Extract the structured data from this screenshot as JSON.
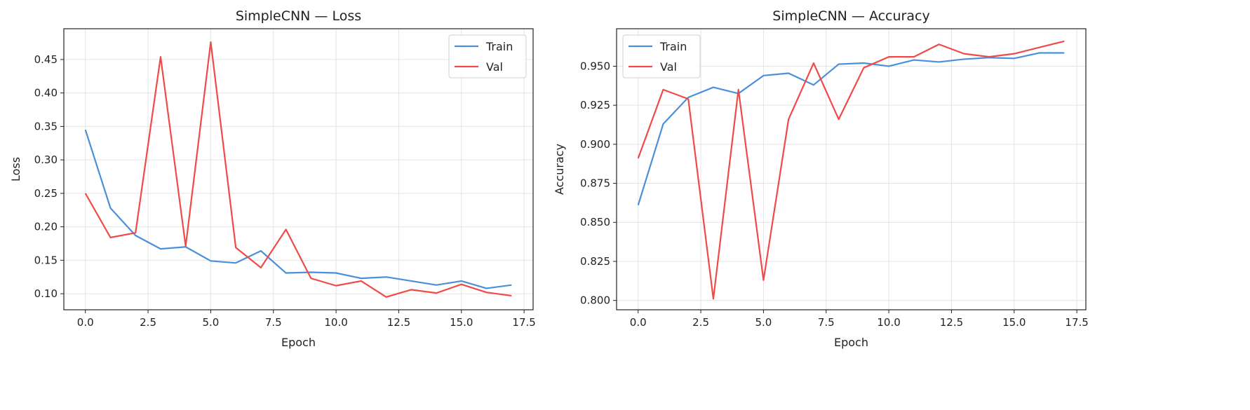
{
  "chart_data": [
    {
      "type": "line",
      "title": "SimpleCNN — Loss",
      "xlabel": "Epoch",
      "ylabel": "Loss",
      "xlim": [
        -0.86,
        17.86
      ],
      "ylim": [
        0.076,
        0.496
      ],
      "xticks": [
        0,
        2.5,
        5,
        7.5,
        10,
        12.5,
        15,
        17.5
      ],
      "xtick_labels": [
        "0.0",
        "2.5",
        "5.0",
        "7.5",
        "10.0",
        "12.5",
        "15.0",
        "17.5"
      ],
      "yticks": [
        0.1,
        0.15,
        0.2,
        0.25,
        0.3,
        0.35,
        0.4,
        0.45
      ],
      "ytick_labels": [
        "0.10",
        "0.15",
        "0.20",
        "0.25",
        "0.30",
        "0.35",
        "0.40",
        "0.45"
      ],
      "grid": true,
      "legend": "upper right",
      "x": [
        0,
        1,
        2,
        3,
        4,
        5,
        6,
        7,
        8,
        9,
        10,
        11,
        12,
        13,
        14,
        15,
        16,
        17
      ],
      "series": [
        {
          "name": "Train",
          "color": "#4a90d9",
          "values": [
            0.345,
            0.228,
            0.187,
            0.167,
            0.17,
            0.149,
            0.146,
            0.164,
            0.131,
            0.132,
            0.131,
            0.123,
            0.125,
            0.119,
            0.113,
            0.119,
            0.108,
            0.113
          ]
        },
        {
          "name": "Val",
          "color": "#f04a48",
          "values": [
            0.25,
            0.184,
            0.191,
            0.454,
            0.171,
            0.476,
            0.169,
            0.139,
            0.196,
            0.123,
            0.112,
            0.119,
            0.095,
            0.106,
            0.101,
            0.114,
            0.102,
            0.097
          ]
        }
      ]
    },
    {
      "type": "line",
      "title": "SimpleCNN — Accuracy",
      "xlabel": "Epoch",
      "ylabel": "Accuracy",
      "xlim": [
        -0.86,
        17.86
      ],
      "ylim": [
        0.794,
        0.974
      ],
      "xticks": [
        0,
        2.5,
        5,
        7.5,
        10,
        12.5,
        15,
        17.5
      ],
      "xtick_labels": [
        "0.0",
        "2.5",
        "5.0",
        "7.5",
        "10.0",
        "12.5",
        "15.0",
        "17.5"
      ],
      "yticks": [
        0.8,
        0.825,
        0.85,
        0.875,
        0.9,
        0.925,
        0.95
      ],
      "ytick_labels": [
        "0.800",
        "0.825",
        "0.850",
        "0.875",
        "0.900",
        "0.925",
        "0.950"
      ],
      "grid": true,
      "legend": "upper left",
      "x": [
        0,
        1,
        2,
        3,
        4,
        5,
        6,
        7,
        8,
        9,
        10,
        11,
        12,
        13,
        14,
        15,
        16,
        17
      ],
      "series": [
        {
          "name": "Train",
          "color": "#4a90d9",
          "values": [
            0.861,
            0.913,
            0.93,
            0.9365,
            0.9325,
            0.944,
            0.9455,
            0.938,
            0.9513,
            0.952,
            0.95,
            0.954,
            0.9527,
            0.9545,
            0.9555,
            0.955,
            0.9585,
            0.9585
          ]
        },
        {
          "name": "Val",
          "color": "#f04a48",
          "values": [
            0.891,
            0.935,
            0.929,
            0.801,
            0.935,
            0.813,
            0.916,
            0.952,
            0.916,
            0.949,
            0.956,
            0.956,
            0.964,
            0.958,
            0.956,
            0.958,
            0.962,
            0.966
          ]
        }
      ]
    }
  ]
}
